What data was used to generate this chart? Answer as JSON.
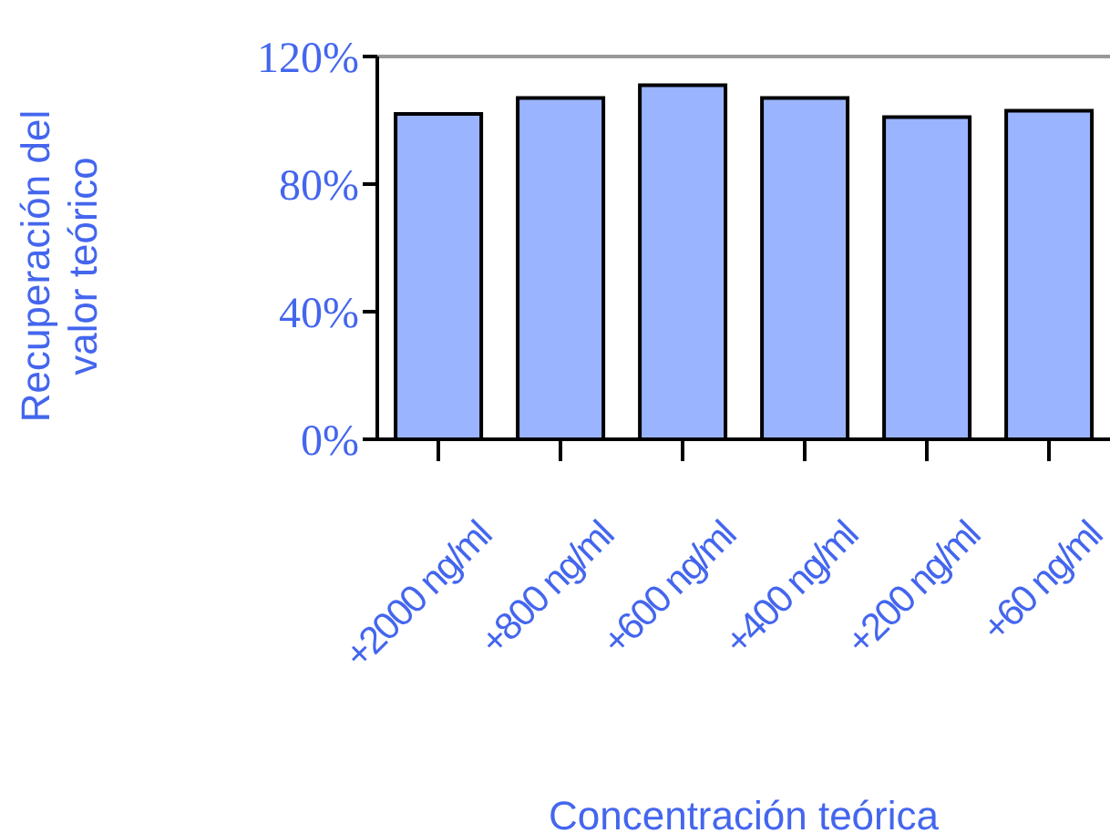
{
  "chart_data": {
    "type": "bar",
    "xlabel": "Concentración teórica",
    "ylabel": "Recuperación del\nvalor teórico",
    "categories": [
      "+2000 ng/ml",
      "+800 ng/ml",
      "+600 ng/ml",
      "+400 ng/ml",
      "+200 ng/ml",
      "+60 ng/ml"
    ],
    "values": [
      102,
      107,
      111,
      107,
      101,
      103
    ],
    "color": "#9ab4ff",
    "ylim": [
      0,
      120
    ],
    "yticks": [
      {
        "value": 0,
        "label": "0%"
      },
      {
        "value": 40,
        "label": "40%"
      },
      {
        "value": 80,
        "label": "80%"
      },
      {
        "value": 120,
        "label": "120%"
      }
    ],
    "legend": false
  }
}
